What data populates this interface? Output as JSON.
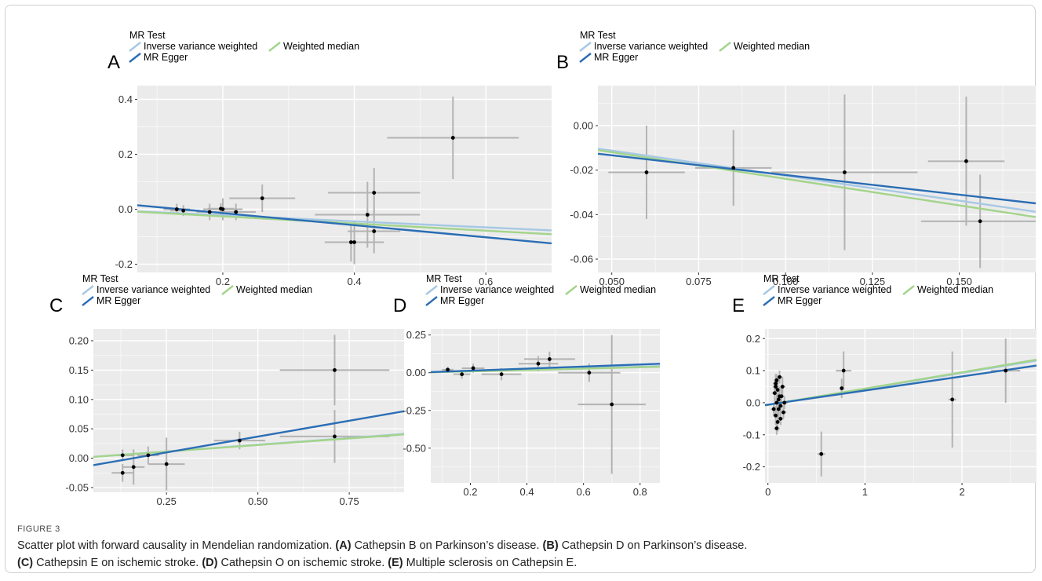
{
  "figure_label": "FIGURE 3",
  "caption": {
    "lead": "Scatter plot with forward causality in Mendelian randomization.",
    "parts": [
      {
        "tag": "(A)",
        "text": "Cathepsin B on Parkinson’s disease."
      },
      {
        "tag": "(B)",
        "text": "Cathepsin D on Parkinson’s disease."
      },
      {
        "tag": "(C)",
        "text": "Cathepsin E on ischemic stroke."
      },
      {
        "tag": "(D)",
        "text": "Cathepsin O on ischemic stroke."
      },
      {
        "tag": "(E)",
        "text": "Multiple sclerosis on Cathepsin E."
      }
    ]
  },
  "legend": {
    "title": "MR Test",
    "items": [
      {
        "name": "Inverse variance weighted",
        "color": "#a6c8e4"
      },
      {
        "name": "MR Egger",
        "color": "#2a6db5"
      },
      {
        "name": "Weighted median",
        "color": "#a3d48b"
      }
    ]
  },
  "colors": {
    "panel_bg": "#ebebeb",
    "grid": "#ffffff",
    "errorbar": "#b3b3b3",
    "point": "#000000"
  },
  "chart_data": [
    {
      "panel": "A",
      "type": "scatter",
      "xlim": [
        0.07,
        0.7
      ],
      "ylim": [
        -0.23,
        0.45
      ],
      "xticks": [
        {
          "v": 0.2,
          "label": "0.2"
        },
        {
          "v": 0.4,
          "label": "0.4"
        },
        {
          "v": 0.6,
          "label": "0.6"
        }
      ],
      "yticks": [
        {
          "v": -0.2,
          "label": "-0.2"
        },
        {
          "v": 0.0,
          "label": "0.0"
        },
        {
          "v": 0.2,
          "label": "0.2"
        },
        {
          "v": 0.4,
          "label": "0.4"
        }
      ],
      "points": [
        {
          "x": 0.55,
          "y": 0.26,
          "xerr": 0.1,
          "yerr": 0.15
        },
        {
          "x": 0.43,
          "y": 0.06,
          "xerr": 0.07,
          "yerr": 0.09
        },
        {
          "x": 0.42,
          "y": -0.02,
          "xerr": 0.08,
          "yerr": 0.12
        },
        {
          "x": 0.43,
          "y": -0.08,
          "xerr": 0.04,
          "yerr": 0.08
        },
        {
          "x": 0.4,
          "y": -0.12,
          "xerr": 0.045,
          "yerr": 0.08
        },
        {
          "x": 0.395,
          "y": -0.12,
          "xerr": 0.04,
          "yerr": 0.07
        },
        {
          "x": 0.26,
          "y": 0.04,
          "xerr": 0.05,
          "yerr": 0.05
        },
        {
          "x": 0.2,
          "y": 0.0,
          "xerr": 0.03,
          "yerr": 0.04
        },
        {
          "x": 0.22,
          "y": -0.01,
          "xerr": 0.03,
          "yerr": 0.03
        },
        {
          "x": 0.18,
          "y": -0.01,
          "xerr": 0.02,
          "yerr": 0.03
        },
        {
          "x": 0.13,
          "y": 0.0,
          "xerr": 0.02,
          "yerr": 0.02
        },
        {
          "x": 0.14,
          "y": -0.005,
          "xerr": 0.02,
          "yerr": 0.02
        },
        {
          "x": 0.197,
          "y": 0.002,
          "xerr": 0.02,
          "yerr": 0.02
        }
      ],
      "lines": [
        {
          "method": "Inverse variance weighted",
          "intercept": 0.0,
          "slope": -0.11
        },
        {
          "method": "MR Egger",
          "intercept": 0.03,
          "slope": -0.22
        },
        {
          "method": "Weighted median",
          "intercept": 0.0,
          "slope": -0.13
        }
      ]
    },
    {
      "panel": "B",
      "type": "scatter",
      "xlim": [
        0.046,
        0.172
      ],
      "ylim": [
        -0.066,
        0.018
      ],
      "xticks": [
        {
          "v": 0.05,
          "label": "0.050"
        },
        {
          "v": 0.075,
          "label": "0.075"
        },
        {
          "v": 0.1,
          "label": "0.100"
        },
        {
          "v": 0.125,
          "label": "0.125"
        },
        {
          "v": 0.15,
          "label": "0.150"
        }
      ],
      "yticks": [
        {
          "v": -0.06,
          "label": "-0.06"
        },
        {
          "v": -0.04,
          "label": "-0.04"
        },
        {
          "v": -0.02,
          "label": "-0.02"
        },
        {
          "v": 0.0,
          "label": "0.00"
        }
      ],
      "points": [
        {
          "x": 0.06,
          "y": -0.021,
          "xerr": 0.011,
          "yerr": 0.021
        },
        {
          "x": 0.085,
          "y": -0.019,
          "xerr": 0.011,
          "yerr": 0.017
        },
        {
          "x": 0.117,
          "y": -0.021,
          "xerr": 0.021,
          "yerr": 0.035
        },
        {
          "x": 0.152,
          "y": -0.016,
          "xerr": 0.011,
          "yerr": 0.029
        },
        {
          "x": 0.156,
          "y": -0.043,
          "xerr": 0.017,
          "yerr": 0.021
        }
      ],
      "lines": [
        {
          "method": "Inverse variance weighted",
          "intercept": 0.0,
          "slope": -0.225
        },
        {
          "method": "MR Egger",
          "intercept": -0.0045,
          "slope": -0.177
        },
        {
          "method": "Weighted median",
          "intercept": 0.0,
          "slope": -0.239
        }
      ]
    },
    {
      "panel": "C",
      "type": "scatter",
      "xlim": [
        0.05,
        0.9
      ],
      "ylim": [
        -0.058,
        0.22
      ],
      "xticks": [
        {
          "v": 0.25,
          "label": "0.25"
        },
        {
          "v": 0.5,
          "label": "0.50"
        },
        {
          "v": 0.75,
          "label": "0.75"
        }
      ],
      "yticks": [
        {
          "v": -0.05,
          "label": "-0.05"
        },
        {
          "v": 0.0,
          "label": "0.00"
        },
        {
          "v": 0.05,
          "label": "0.05"
        },
        {
          "v": 0.1,
          "label": "0.10"
        },
        {
          "v": 0.15,
          "label": "0.15"
        },
        {
          "v": 0.2,
          "label": "0.20"
        }
      ],
      "points": [
        {
          "x": 0.71,
          "y": 0.15,
          "xerr": 0.15,
          "yerr": 0.06
        },
        {
          "x": 0.71,
          "y": 0.037,
          "xerr": 0.15,
          "yerr": 0.045
        },
        {
          "x": 0.45,
          "y": 0.03,
          "xerr": 0.07,
          "yerr": 0.015
        },
        {
          "x": 0.25,
          "y": -0.01,
          "xerr": 0.05,
          "yerr": 0.045
        },
        {
          "x": 0.16,
          "y": -0.015,
          "xerr": 0.03,
          "yerr": 0.03
        },
        {
          "x": 0.13,
          "y": -0.025,
          "xerr": 0.03,
          "yerr": 0.015
        },
        {
          "x": 0.13,
          "y": 0.005,
          "xerr": 0.03,
          "yerr": 0.01
        },
        {
          "x": 0.2,
          "y": 0.005,
          "xerr": 0.03,
          "yerr": 0.015
        }
      ],
      "lines": [
        {
          "method": "Inverse variance weighted",
          "intercept": 0.0,
          "slope": 0.046
        },
        {
          "method": "MR Egger",
          "intercept": -0.0172,
          "slope": 0.108
        },
        {
          "method": "Weighted median",
          "intercept": 0.0,
          "slope": 0.045
        }
      ]
    },
    {
      "panel": "D",
      "type": "scatter",
      "xlim": [
        0.06,
        0.87
      ],
      "ylim": [
        -0.73,
        0.29
      ],
      "xticks": [
        {
          "v": 0.2,
          "label": "0.2"
        },
        {
          "v": 0.4,
          "label": "0.4"
        },
        {
          "v": 0.6,
          "label": "0.6"
        },
        {
          "v": 0.8,
          "label": "0.8"
        }
      ],
      "yticks": [
        {
          "v": -0.5,
          "label": "-0.50"
        },
        {
          "v": -0.25,
          "label": "-0.25"
        },
        {
          "v": 0.0,
          "label": "0.00"
        },
        {
          "v": 0.25,
          "label": "0.25"
        }
      ],
      "points": [
        {
          "x": 0.7,
          "y": -0.21,
          "xerr": 0.12,
          "yerr": 0.46
        },
        {
          "x": 0.62,
          "y": 0.0,
          "xerr": 0.11,
          "yerr": 0.06
        },
        {
          "x": 0.48,
          "y": 0.09,
          "xerr": 0.09,
          "yerr": 0.05
        },
        {
          "x": 0.44,
          "y": 0.06,
          "xerr": 0.07,
          "yerr": 0.05
        },
        {
          "x": 0.31,
          "y": -0.01,
          "xerr": 0.07,
          "yerr": 0.04
        },
        {
          "x": 0.21,
          "y": 0.03,
          "xerr": 0.04,
          "yerr": 0.03
        },
        {
          "x": 0.17,
          "y": -0.01,
          "xerr": 0.03,
          "yerr": 0.03
        },
        {
          "x": 0.12,
          "y": 0.02,
          "xerr": 0.02,
          "yerr": 0.02
        }
      ],
      "lines": [
        {
          "method": "Inverse variance weighted",
          "intercept": 0.0,
          "slope": 0.05
        },
        {
          "method": "MR Egger",
          "intercept": 0.0,
          "slope": 0.068
        },
        {
          "method": "Weighted median",
          "intercept": 0.0,
          "slope": 0.045
        }
      ]
    },
    {
      "panel": "E",
      "type": "scatter",
      "xlim": [
        -0.03,
        2.8
      ],
      "ylim": [
        -0.25,
        0.23
      ],
      "xticks": [
        {
          "v": 0,
          "label": "0"
        },
        {
          "v": 1,
          "label": "1"
        },
        {
          "v": 2,
          "label": "2"
        }
      ],
      "yticks": [
        {
          "v": -0.2,
          "label": "-0.2"
        },
        {
          "v": -0.1,
          "label": "-0.1"
        },
        {
          "v": 0.0,
          "label": "0.0"
        },
        {
          "v": 0.1,
          "label": "0.1"
        },
        {
          "v": 0.2,
          "label": "0.2"
        }
      ],
      "points": [
        {
          "x": 2.45,
          "y": 0.1,
          "xerr": 0.15,
          "yerr": 0.1
        },
        {
          "x": 1.9,
          "y": 0.01,
          "xerr": 0.04,
          "yerr": 0.15
        },
        {
          "x": 0.78,
          "y": 0.1,
          "xerr": 0.08,
          "yerr": 0.06
        },
        {
          "x": 0.76,
          "y": 0.045,
          "xerr": 0.02,
          "yerr": 0.03
        },
        {
          "x": 0.55,
          "y": -0.16,
          "xerr": 0.04,
          "yerr": 0.07
        },
        {
          "x": 0.08,
          "y": 0.06,
          "xerr": 0.03,
          "yerr": 0.03
        },
        {
          "x": 0.1,
          "y": 0.04,
          "xerr": 0.03,
          "yerr": 0.04
        },
        {
          "x": 0.12,
          "y": 0.02,
          "xerr": 0.03,
          "yerr": 0.03
        },
        {
          "x": 0.09,
          "y": 0.0,
          "xerr": 0.03,
          "yerr": 0.03
        },
        {
          "x": 0.11,
          "y": -0.02,
          "xerr": 0.03,
          "yerr": 0.04
        },
        {
          "x": 0.08,
          "y": -0.04,
          "xerr": 0.03,
          "yerr": 0.03
        },
        {
          "x": 0.13,
          "y": -0.01,
          "xerr": 0.03,
          "yerr": 0.03
        },
        {
          "x": 0.07,
          "y": 0.03,
          "xerr": 0.03,
          "yerr": 0.03
        },
        {
          "x": 0.15,
          "y": 0.05,
          "xerr": 0.03,
          "yerr": 0.03
        },
        {
          "x": 0.1,
          "y": -0.06,
          "xerr": 0.03,
          "yerr": 0.03
        },
        {
          "x": 0.09,
          "y": 0.07,
          "xerr": 0.03,
          "yerr": 0.02
        },
        {
          "x": 0.16,
          "y": -0.03,
          "xerr": 0.03,
          "yerr": 0.02
        },
        {
          "x": 0.14,
          "y": 0.02,
          "xerr": 0.03,
          "yerr": 0.03
        },
        {
          "x": 0.06,
          "y": -0.02,
          "xerr": 0.03,
          "yerr": 0.02
        },
        {
          "x": 0.12,
          "y": 0.08,
          "xerr": 0.03,
          "yerr": 0.02
        },
        {
          "x": 0.09,
          "y": -0.08,
          "xerr": 0.03,
          "yerr": 0.02
        },
        {
          "x": 0.17,
          "y": 0.0,
          "xerr": 0.03,
          "yerr": 0.02
        },
        {
          "x": 0.11,
          "y": 0.01,
          "xerr": 0.03,
          "yerr": 0.02
        },
        {
          "x": 0.13,
          "y": -0.05,
          "xerr": 0.03,
          "yerr": 0.02
        },
        {
          "x": 0.08,
          "y": 0.05,
          "xerr": 0.03,
          "yerr": 0.02
        }
      ],
      "lines": [
        {
          "method": "Inverse variance weighted",
          "intercept": -0.007,
          "slope": 0.05
        },
        {
          "method": "MR Egger",
          "intercept": -0.006,
          "slope": 0.044
        },
        {
          "method": "Weighted median",
          "intercept": -0.007,
          "slope": 0.051
        }
      ]
    }
  ]
}
